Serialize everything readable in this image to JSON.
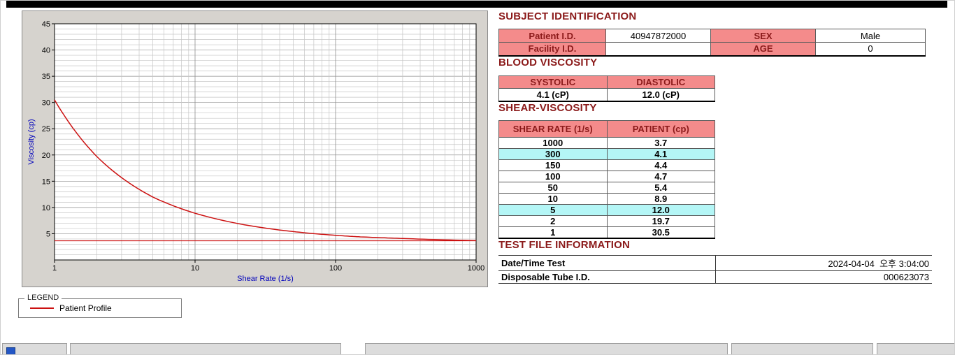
{
  "colors": {
    "pink": "#F48B8B",
    "cyan": "#B4F6F6",
    "maroon": "#8B1A1A",
    "red": "#CC1111",
    "panel": "#D6D3CE",
    "axis-blue": "#0000BB"
  },
  "subject": {
    "title": "SUBJECT IDENTIFICATION",
    "rows": [
      {
        "label1": "Patient I.D.",
        "value1": "40947872000",
        "label2": "SEX",
        "value2": "Male"
      },
      {
        "label1": "Facility I.D.",
        "value1": "",
        "label2": "AGE",
        "value2": "0"
      }
    ]
  },
  "blood": {
    "title": "BLOOD VISCOSITY",
    "col1_header": "SYSTOLIC",
    "col2_header": "DIASTOLIC",
    "col1_value": "4.1 (cP)",
    "col2_value": "12.0 (cP)"
  },
  "shear": {
    "title": "SHEAR-VISCOSITY",
    "col1_header": "SHEAR RATE (1/s)",
    "col2_header": "PATIENT (cp)",
    "rows": [
      {
        "rate": "1000",
        "value": "3.7",
        "highlight": false
      },
      {
        "rate": "300",
        "value": "4.1",
        "highlight": true
      },
      {
        "rate": "150",
        "value": "4.4",
        "highlight": false
      },
      {
        "rate": "100",
        "value": "4.7",
        "highlight": false
      },
      {
        "rate": "50",
        "value": "5.4",
        "highlight": false
      },
      {
        "rate": "10",
        "value": "8.9",
        "highlight": false
      },
      {
        "rate": "5",
        "value": "12.0",
        "highlight": true
      },
      {
        "rate": "2",
        "value": "19.7",
        "highlight": false
      },
      {
        "rate": "1",
        "value": "30.5",
        "highlight": false
      }
    ]
  },
  "test_file": {
    "title": "TEST FILE INFORMATION",
    "rows": [
      {
        "label": "Date/Time Test",
        "value": "2024-04-04  오후 3:04:00"
      },
      {
        "label": "Disposable Tube I.D.",
        "value": "000623073"
      }
    ]
  },
  "legend": {
    "title": "LEGEND",
    "items": [
      {
        "label": "Patient Profile"
      }
    ]
  },
  "chart_data": {
    "type": "line",
    "xscale": "log",
    "x": [
      1,
      2,
      5,
      10,
      50,
      100,
      150,
      300,
      1000
    ],
    "series": [
      {
        "name": "Patient Profile",
        "values": [
          30.5,
          19.7,
          12.0,
          8.9,
          5.4,
          4.7,
          4.4,
          4.1,
          3.7
        ]
      }
    ],
    "reference_line_y": 3.65,
    "xlabel": "Shear Rate (1/s)",
    "ylabel": "Viscosity (cp)",
    "xlim": [
      1,
      1000
    ],
    "ylim": [
      0,
      45
    ],
    "y_ticks": [
      5,
      10,
      15,
      20,
      25,
      30,
      35,
      40,
      45
    ],
    "x_ticks": [
      1,
      10,
      100,
      1000
    ],
    "grid": true,
    "legend_position": "bottom-left"
  }
}
